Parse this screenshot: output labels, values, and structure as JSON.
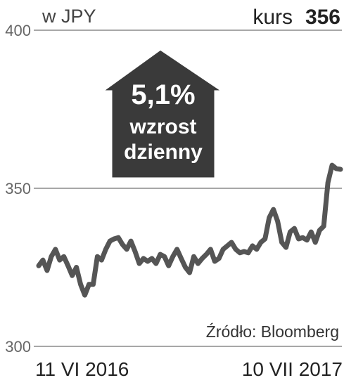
{
  "chart_data": {
    "type": "line",
    "title": "w JPY",
    "current_label": "kurs",
    "current_value": 356,
    "annotation": [
      "5,1%",
      "wzrost",
      "dzienny"
    ],
    "source": "Źródło: Bloomberg",
    "categories": [
      "11 VI 2016",
      null,
      null,
      null,
      null,
      null,
      null,
      null,
      null,
      null,
      null,
      null,
      null,
      null,
      null,
      null,
      null,
      null,
      null,
      null,
      null,
      null,
      null,
      null,
      null,
      null,
      null,
      null,
      null,
      null,
      null,
      null,
      null,
      null,
      null,
      null,
      null,
      null,
      null,
      null,
      null,
      null,
      null,
      null,
      null,
      null,
      null,
      null,
      null,
      null,
      null,
      null,
      null,
      null,
      null,
      null,
      null,
      null,
      null,
      null,
      null,
      null,
      null,
      null,
      null,
      null,
      null,
      null,
      null,
      null,
      null,
      null,
      "10 VII 2017"
    ],
    "series": [
      {
        "color": "#555555",
        "values": [
          325.5,
          327.3,
          324,
          328.4,
          330.7,
          327.3,
          328.4,
          325.5,
          322.4,
          325,
          319.6,
          316.2,
          319.6,
          319.6,
          328.4,
          327.3,
          330.7,
          333.3,
          334,
          334.4,
          332.2,
          330.7,
          333.3,
          330,
          326.2,
          327.8,
          326.9,
          327.8,
          326.2,
          329.1,
          328.4,
          325.5,
          328.4,
          330.7,
          327.8,
          325,
          323.3,
          328.4,
          326.2,
          327.8,
          329.1,
          330.7,
          326.9,
          327.8,
          330.7,
          331.8,
          332.9,
          330.7,
          329.6,
          330,
          329.6,
          331.8,
          330.7,
          332.9,
          334,
          340.7,
          343.3,
          339.6,
          332.9,
          331.3,
          336.2,
          337.3,
          334,
          334.4,
          333.6,
          336.2,
          332.9,
          336.7,
          338,
          351.8,
          357.3,
          356.2,
          356
        ]
      }
    ],
    "ylim": [
      300,
      400
    ],
    "yticks": [
      300,
      350,
      400
    ],
    "grid": true
  }
}
